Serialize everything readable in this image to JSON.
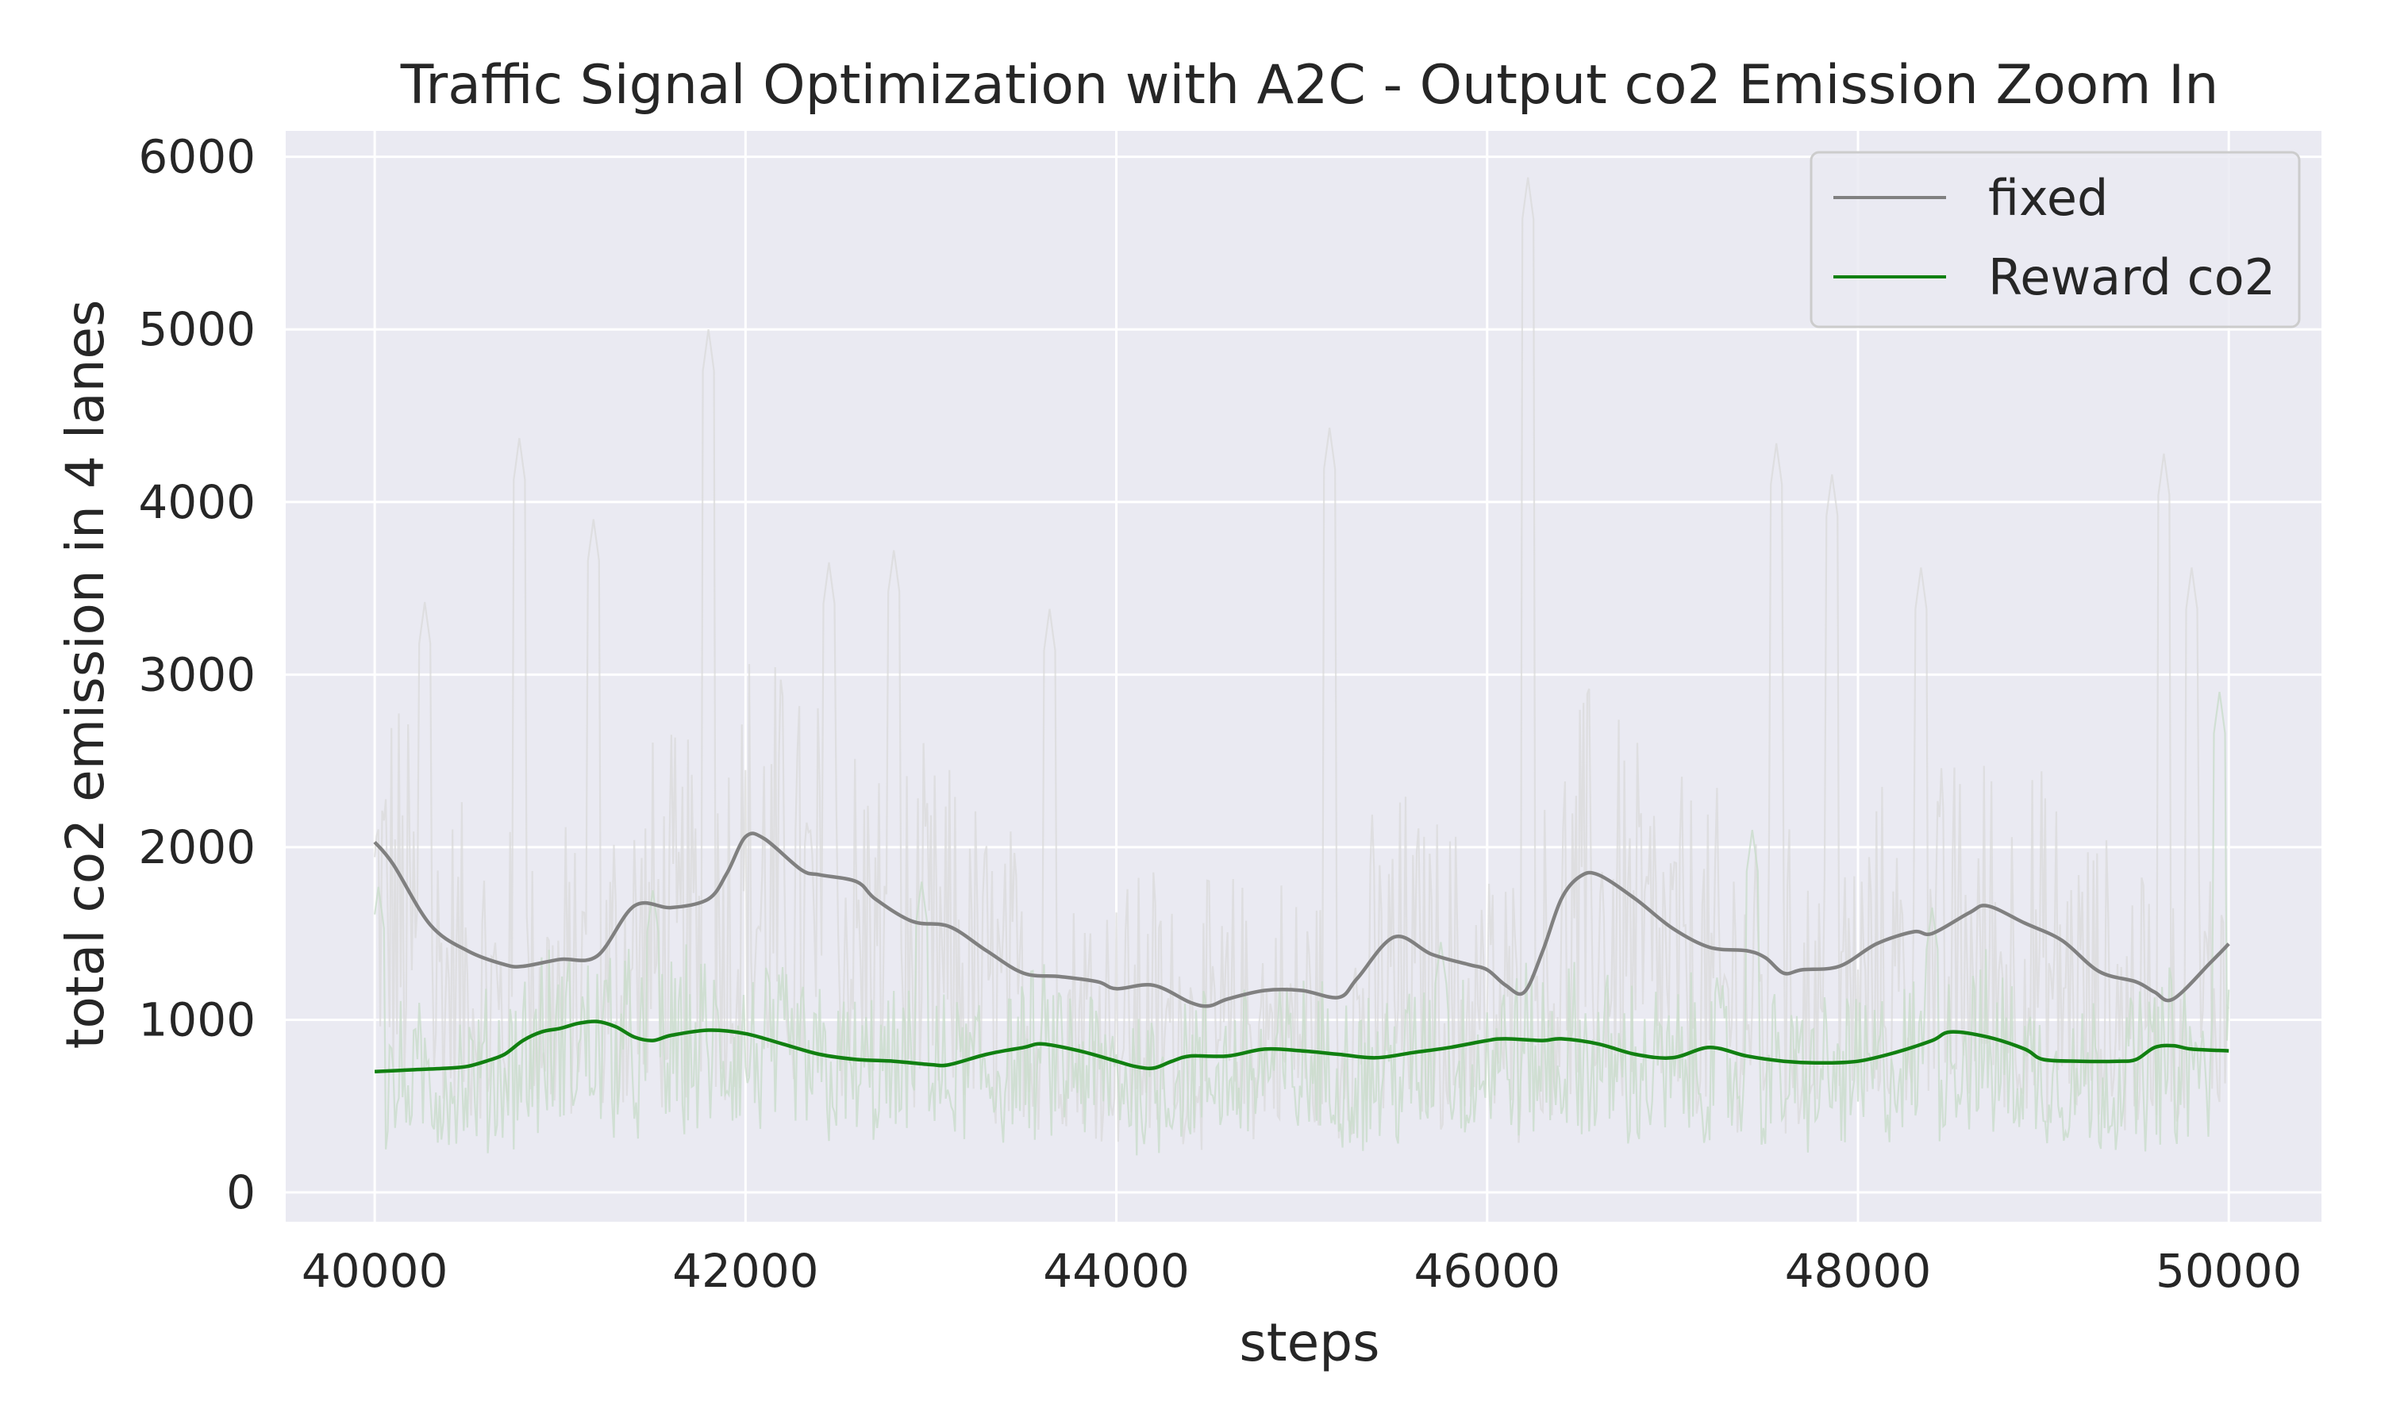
{
  "chart_data": {
    "type": "line",
    "title": "Traffic Signal Optimization with A2C - Output co2 Emission Zoom In",
    "xlabel": "steps",
    "ylabel": "total co2 emission in 4 lanes",
    "xlim": [
      39520,
      50500
    ],
    "ylim": [
      -170,
      6150
    ],
    "xticks": [
      "40000",
      "42000",
      "44000",
      "46000",
      "48000",
      "50000"
    ],
    "yticks": [
      "0",
      "1000",
      "2000",
      "3000",
      "4000",
      "5000",
      "6000"
    ],
    "grid": true,
    "background": "#eaeaf2",
    "legend_position": "top-right",
    "series": [
      {
        "name": "fixed",
        "color": "#808080",
        "raw_color": "#d9d9d9",
        "smoothed": {
          "x": [
            40000,
            40100,
            40300,
            40500,
            40700,
            40800,
            41000,
            41200,
            41400,
            41600,
            41800,
            41900,
            42000,
            42100,
            42300,
            42400,
            42600,
            42700,
            42900,
            43100,
            43300,
            43500,
            43700,
            43900,
            44000,
            44200,
            44400,
            44500,
            44600,
            44800,
            45000,
            45200,
            45300,
            45500,
            45700,
            45900,
            46000,
            46100,
            46200,
            46300,
            46400,
            46500,
            46600,
            46800,
            47000,
            47200,
            47400,
            47500,
            47600,
            47700,
            47900,
            48100,
            48300,
            48400,
            48600,
            48700,
            48900,
            49100,
            49300,
            49500,
            49600,
            49700,
            49900,
            50000
          ],
          "y": [
            2030,
            1900,
            1550,
            1400,
            1320,
            1310,
            1350,
            1370,
            1660,
            1650,
            1700,
            1850,
            2060,
            2050,
            1870,
            1840,
            1800,
            1700,
            1570,
            1540,
            1400,
            1270,
            1250,
            1220,
            1180,
            1200,
            1100,
            1080,
            1120,
            1170,
            1170,
            1130,
            1240,
            1480,
            1380,
            1320,
            1290,
            1200,
            1160,
            1400,
            1700,
            1830,
            1840,
            1700,
            1530,
            1420,
            1400,
            1360,
            1270,
            1290,
            1310,
            1440,
            1510,
            1500,
            1620,
            1660,
            1560,
            1460,
            1280,
            1220,
            1160,
            1120,
            1330,
            1440
          ]
        },
        "raw": {
          "y_min": 150,
          "y_max": 5900,
          "peaks": [
            {
              "x": 40270,
              "y": 3420
            },
            {
              "x": 40780,
              "y": 4370
            },
            {
              "x": 41180,
              "y": 3900
            },
            {
              "x": 41800,
              "y": 5000
            },
            {
              "x": 42450,
              "y": 3650
            },
            {
              "x": 42800,
              "y": 3720
            },
            {
              "x": 43640,
              "y": 3380
            },
            {
              "x": 45150,
              "y": 4430
            },
            {
              "x": 46220,
              "y": 5880
            },
            {
              "x": 47560,
              "y": 4340
            },
            {
              "x": 47860,
              "y": 4160
            },
            {
              "x": 48340,
              "y": 3620
            },
            {
              "x": 49650,
              "y": 4280
            },
            {
              "x": 49800,
              "y": 3620
            }
          ]
        }
      },
      {
        "name": "Reward co2",
        "color": "#118011",
        "raw_color": "#c9dccb",
        "smoothed": {
          "x": [
            40000,
            40200,
            40400,
            40500,
            40600,
            40700,
            40800,
            40900,
            41000,
            41100,
            41200,
            41300,
            41400,
            41500,
            41600,
            41800,
            42000,
            42200,
            42400,
            42600,
            42800,
            43000,
            43100,
            43300,
            43500,
            43600,
            43800,
            44000,
            44100,
            44200,
            44300,
            44400,
            44600,
            44800,
            45000,
            45200,
            45400,
            45600,
            45800,
            46000,
            46100,
            46300,
            46400,
            46600,
            46800,
            47000,
            47200,
            47400,
            47600,
            47800,
            48000,
            48200,
            48400,
            48500,
            48700,
            48900,
            49000,
            49200,
            49400,
            49500,
            49600,
            49700,
            49800,
            50000
          ],
          "y": [
            700,
            710,
            720,
            730,
            760,
            800,
            880,
            930,
            950,
            980,
            990,
            960,
            900,
            880,
            910,
            940,
            920,
            860,
            800,
            770,
            760,
            740,
            740,
            800,
            840,
            860,
            820,
            760,
            730,
            720,
            760,
            790,
            790,
            830,
            820,
            800,
            780,
            810,
            840,
            880,
            890,
            880,
            890,
            860,
            800,
            780,
            840,
            790,
            760,
            750,
            760,
            810,
            880,
            930,
            900,
            830,
            770,
            760,
            760,
            770,
            840,
            850,
            830,
            820
          ]
        },
        "raw": {
          "y_min": 130,
          "y_max": 2900,
          "peaks": [
            {
              "x": 40020,
              "y": 1770
            },
            {
              "x": 41500,
              "y": 1750
            },
            {
              "x": 42950,
              "y": 1800
            },
            {
              "x": 45750,
              "y": 1450
            },
            {
              "x": 47430,
              "y": 2100
            },
            {
              "x": 48400,
              "y": 1650
            },
            {
              "x": 49950,
              "y": 2900
            }
          ]
        }
      }
    ]
  }
}
